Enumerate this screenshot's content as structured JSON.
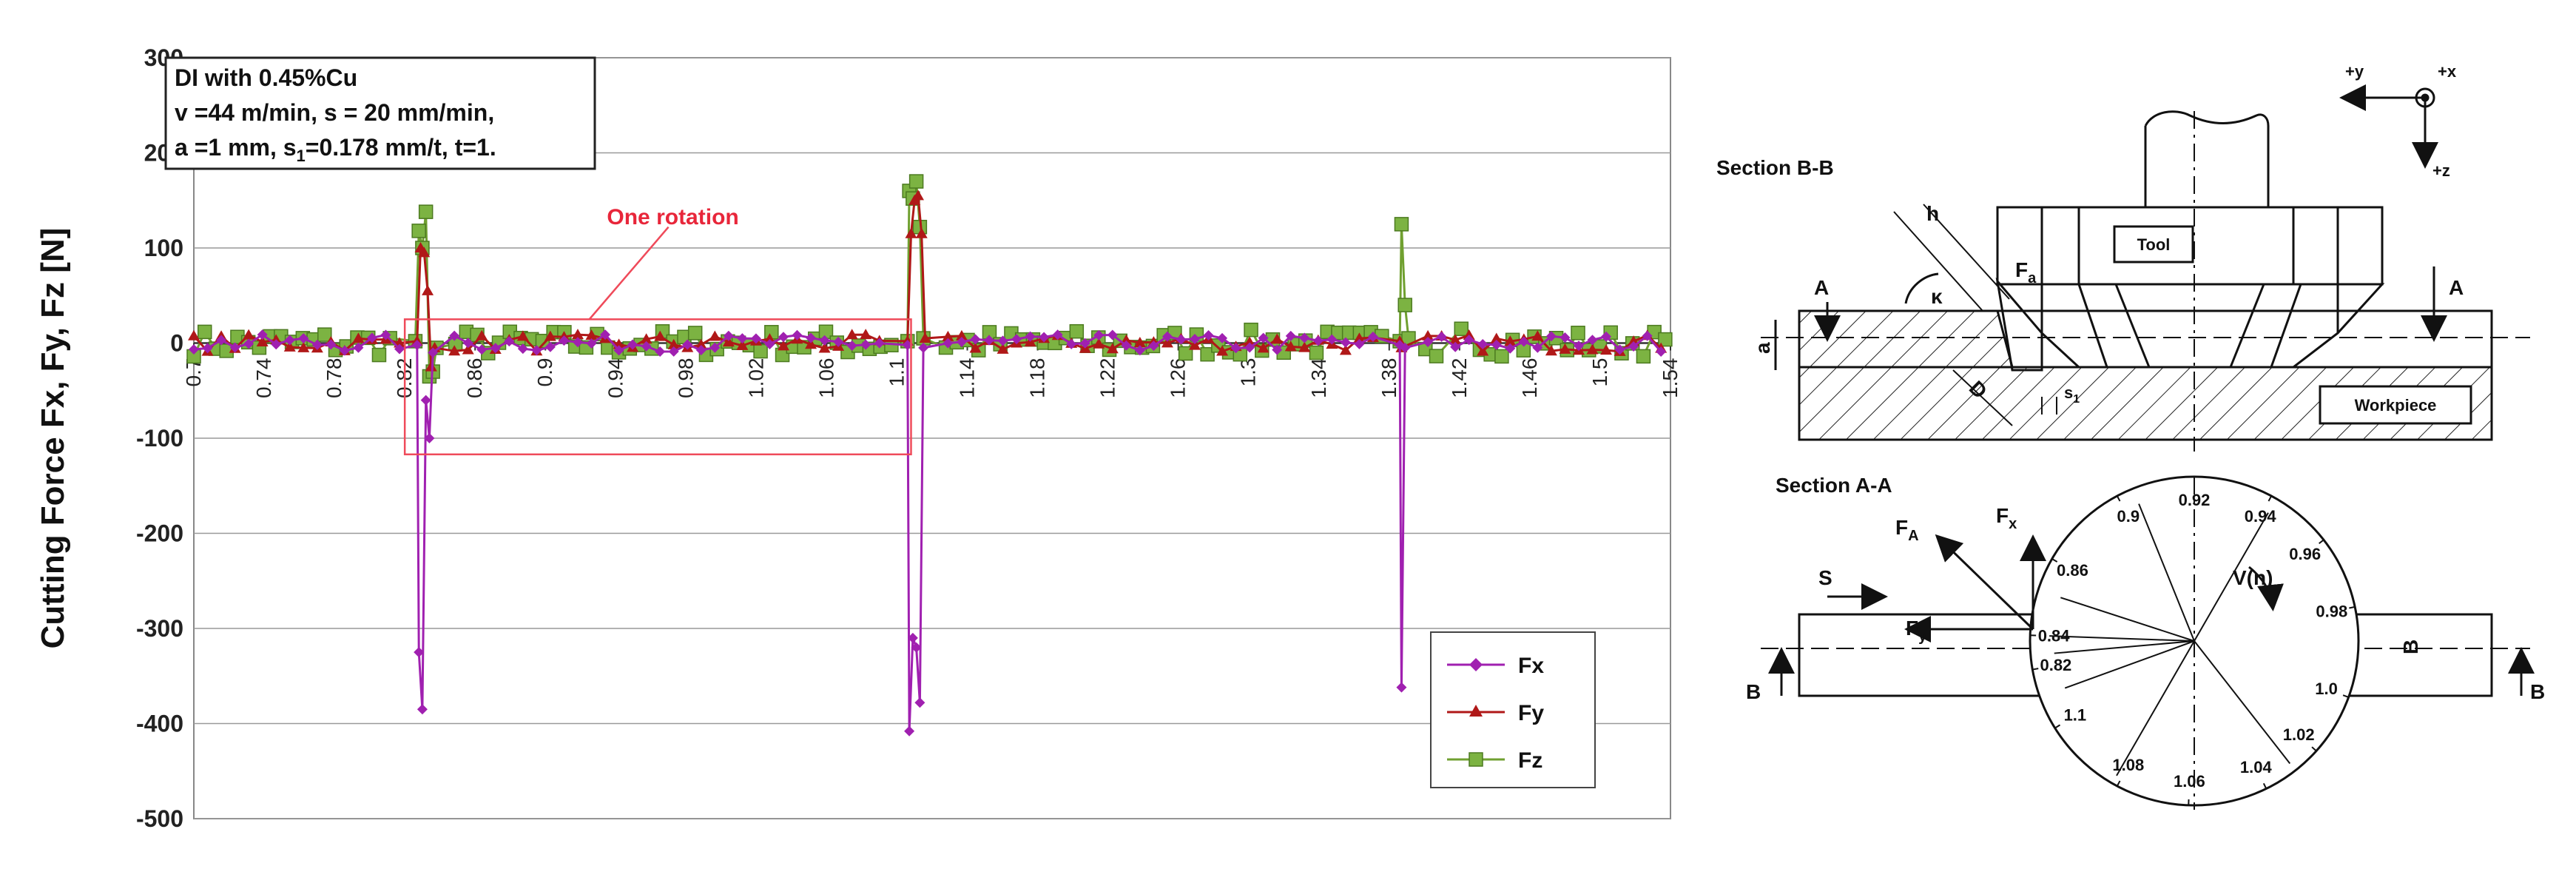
{
  "chart_data": {
    "type": "line",
    "ylabel": "Cutting Force Fx, Fy, Fz [N]",
    "xlabel": "",
    "ylim": [
      -500,
      300
    ],
    "yticks": [
      300,
      200,
      100,
      0,
      -100,
      -200,
      -300,
      -400,
      -500
    ],
    "xlim": [
      0.7,
      1.54
    ],
    "xticks": [
      "0.7",
      "0.74",
      "0.78",
      "0.82",
      "0.86",
      "0.9",
      "0.94",
      "0.98",
      "1.02",
      "1.06",
      "1.1",
      "1.14",
      "1.18",
      "1.22",
      "1.26",
      "1.3",
      "1.34",
      "1.38",
      "1.42",
      "1.46",
      "1.5",
      "1.54"
    ],
    "grid": "horizontal",
    "legend_position": "bottom-right",
    "annotation_box": [
      "DI with 0.45%Cu",
      "v =44 m/min, s = 20 mm/min,",
      "a =1 mm, s",
      "1",
      "=0.178 mm/t, t=1."
    ],
    "rotation_label": "One rotation",
    "rotation_span": [
      0.82,
      1.108
    ],
    "series": [
      {
        "name": "Fx",
        "color": "#a020b0",
        "marker": "diamond",
        "spikes": [
          [
            0.827,
            -2
          ],
          [
            0.828,
            -325
          ],
          [
            0.83,
            -385
          ],
          [
            0.832,
            -60
          ],
          [
            0.834,
            -100
          ],
          [
            0.836,
            -10
          ],
          [
            1.106,
            -2
          ],
          [
            1.107,
            -408
          ],
          [
            1.109,
            -310
          ],
          [
            1.111,
            -320
          ],
          [
            1.113,
            -378
          ],
          [
            1.115,
            -5
          ],
          [
            1.386,
            -2
          ],
          [
            1.387,
            -362
          ],
          [
            1.389,
            -5
          ]
        ]
      },
      {
        "name": "Fy",
        "color": "#b01818",
        "marker": "triangle",
        "spikes": [
          [
            0.827,
            2
          ],
          [
            0.829,
            100
          ],
          [
            0.831,
            95
          ],
          [
            0.833,
            55
          ],
          [
            0.835,
            -25
          ],
          [
            0.837,
            -5
          ],
          [
            1.106,
            2
          ],
          [
            1.108,
            115
          ],
          [
            1.11,
            150
          ],
          [
            1.112,
            155
          ],
          [
            1.114,
            115
          ],
          [
            1.116,
            5
          ],
          [
            1.386,
            2
          ],
          [
            1.387,
            -5
          ]
        ]
      },
      {
        "name": "Fz",
        "color": "#70a030",
        "marker": "square",
        "spikes": [
          [
            0.826,
            2
          ],
          [
            0.828,
            118
          ],
          [
            0.83,
            100
          ],
          [
            0.832,
            138
          ],
          [
            0.834,
            -35
          ],
          [
            0.836,
            -30
          ],
          [
            0.838,
            -5
          ],
          [
            1.106,
            2
          ],
          [
            1.107,
            160
          ],
          [
            1.109,
            152
          ],
          [
            1.111,
            170
          ],
          [
            1.113,
            122
          ],
          [
            1.115,
            5
          ],
          [
            1.386,
            2
          ],
          [
            1.387,
            125
          ],
          [
            1.389,
            40
          ],
          [
            1.391,
            5
          ],
          [
            1.421,
            15
          ]
        ]
      }
    ]
  },
  "diagram": {
    "section_bb": "Section B-B",
    "section_aa": "Section A-A",
    "tool": "Tool",
    "workpiece": "Workpiece",
    "axis_labels": [
      "+y",
      "+x",
      "+z"
    ],
    "labels": {
      "A": "A",
      "B": "B",
      "a": "a",
      "h": "h",
      "kappa": "κ",
      "D": "D",
      "S": "S",
      "Fa": "F",
      "Fa_sub": "a",
      "FA": "F",
      "FA_sub": "A",
      "Fx": "F",
      "Fx_sub": "x",
      "Fy": "F",
      "Fy_sub": "y",
      "s1": "s",
      "s1_sub": "1",
      "V": "V(n)"
    },
    "circle_marks": [
      "0.92",
      "0.94",
      "0.96",
      "0.98",
      "1.0",
      "1.02",
      "1.04",
      "1.06",
      "1.08",
      "1.1",
      "0.82",
      "0.84",
      "0.86",
      "0.9"
    ]
  }
}
